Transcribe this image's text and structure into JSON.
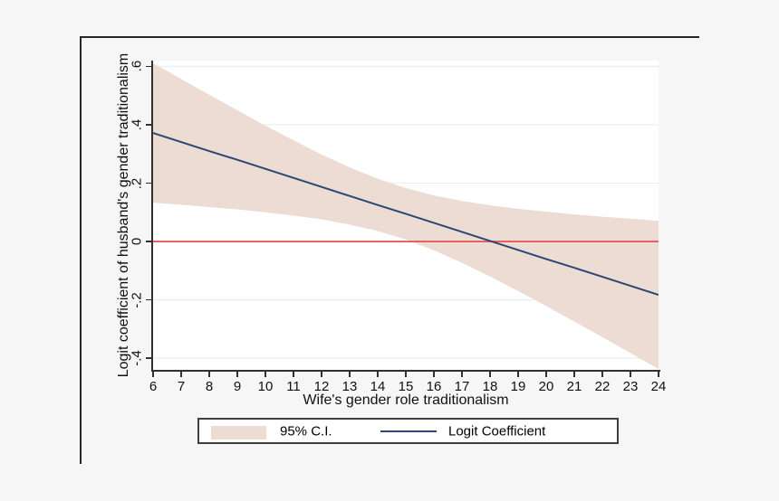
{
  "figure": {
    "background": "#f6f6f6",
    "plot_background": "#ffffff"
  },
  "chart_data": {
    "type": "line",
    "title": "",
    "xlabel": "Wife's gender role traditionalism",
    "ylabel": "Logit coefficient of husband's gender traditionalism",
    "xlim": [
      6,
      24
    ],
    "ylim": [
      -0.443,
      0.62
    ],
    "grid": "on",
    "legend_position": "bottom-center",
    "x_ticks": {
      "values": [
        6,
        7,
        8,
        9,
        10,
        11,
        12,
        13,
        14,
        15,
        16,
        17,
        18,
        19,
        20,
        21,
        22,
        23,
        24
      ],
      "labels": [
        "6",
        "7",
        "8",
        "9",
        "10",
        "11",
        "12",
        "13",
        "14",
        "15",
        "16",
        "17",
        "18",
        "19",
        "20",
        "21",
        "22",
        "23",
        "24"
      ]
    },
    "y_ticks": {
      "values": [
        0.6,
        0.4,
        0.2,
        0,
        -0.2,
        -0.4
      ],
      "labels": [
        ".6",
        ".4",
        ".2",
        "0",
        "-.2",
        "-.4"
      ]
    },
    "grid_y": [
      0.6,
      0.4,
      0.2,
      -0.2,
      -0.4
    ],
    "zero_line_y": 0,
    "x": [
      6,
      7,
      8,
      9,
      10,
      11,
      12,
      13,
      14,
      15,
      16,
      17,
      18,
      19,
      20,
      21,
      22,
      23,
      24
    ],
    "series": [
      {
        "name": "Logit Coefficient",
        "type": "line",
        "color": "#2d4673",
        "values": [
          0.372,
          0.341,
          0.31,
          0.28,
          0.249,
          0.218,
          0.187,
          0.156,
          0.125,
          0.095,
          0.064,
          0.033,
          0.002,
          -0.029,
          -0.06,
          -0.09,
          -0.121,
          -0.152,
          -0.183
        ]
      },
      {
        "name": "95% C.I.",
        "type": "band",
        "color": "#ecdcd3",
        "upper": [
          0.611,
          0.557,
          0.503,
          0.45,
          0.397,
          0.347,
          0.298,
          0.254,
          0.215,
          0.183,
          0.158,
          0.139,
          0.124,
          0.112,
          0.102,
          0.093,
          0.085,
          0.078,
          0.071
        ],
        "lower": [
          0.133,
          0.126,
          0.118,
          0.11,
          0.1,
          0.089,
          0.076,
          0.058,
          0.036,
          0.007,
          -0.03,
          -0.073,
          -0.12,
          -0.17,
          -0.221,
          -0.274,
          -0.328,
          -0.382,
          -0.437
        ]
      }
    ],
    "colors": {
      "grid": "#e6eff3",
      "zero_line": "#e45a5c",
      "axis": "#303030",
      "band": "#ecdcd3",
      "line": "#2d4673"
    }
  },
  "legend": {
    "ci_label": "95% C.I.",
    "line_label": "Logit Coefficient"
  }
}
